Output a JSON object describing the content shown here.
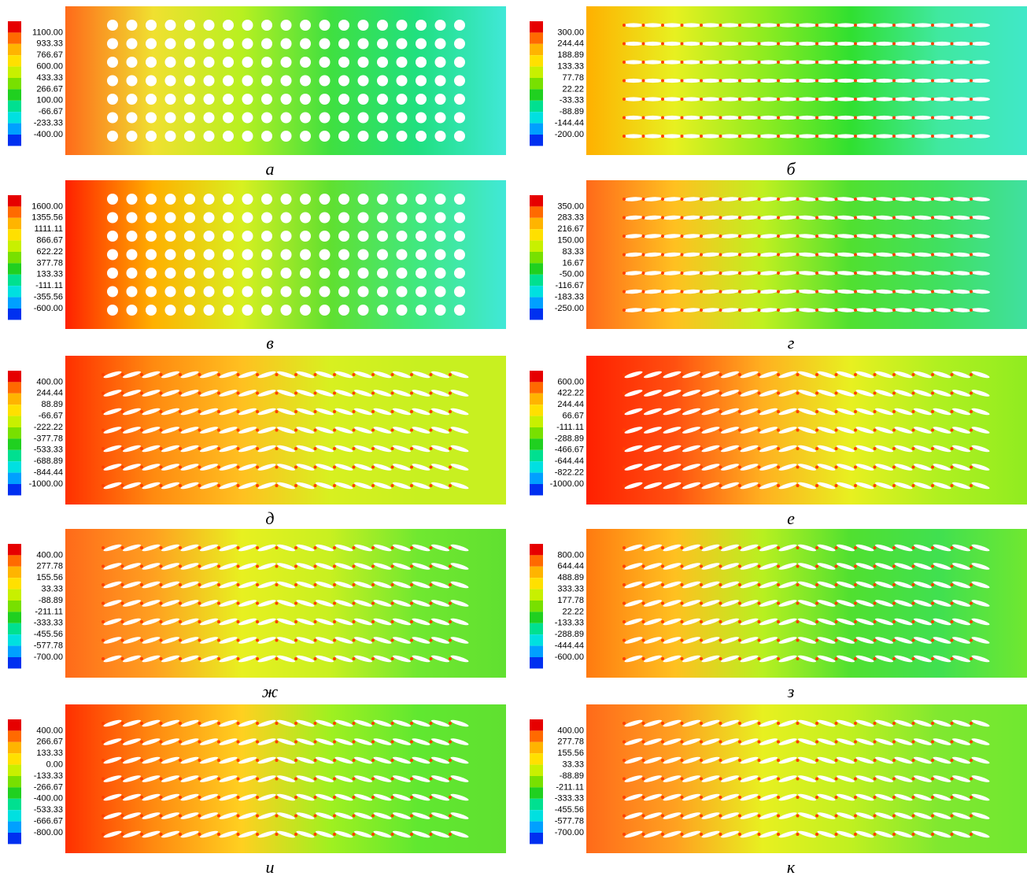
{
  "panels": [
    {
      "caption": "а",
      "legend": [
        "1100.00",
        "933.33",
        "766.67",
        "600.00",
        "433.33",
        "266.67",
        "100.00",
        "-66.67",
        "-233.33",
        "-400.00"
      ]
    },
    {
      "caption": "б",
      "legend": [
        "300.00",
        "244.44",
        "188.89",
        "133.33",
        "77.78",
        "22.22",
        "-33.33",
        "-88.89",
        "-144.44",
        "-200.00"
      ]
    },
    {
      "caption": "в",
      "legend": [
        "1600.00",
        "1355.56",
        "1111.11",
        "866.67",
        "622.22",
        "377.78",
        "133.33",
        "-111.11",
        "-355.56",
        "-600.00"
      ]
    },
    {
      "caption": "г",
      "legend": [
        "350.00",
        "283.33",
        "216.67",
        "150.00",
        "83.33",
        "16.67",
        "-50.00",
        "-116.67",
        "-183.33",
        "-250.00"
      ]
    },
    {
      "caption": "д",
      "legend": [
        "400.00",
        "244.44",
        "88.89",
        "-66.67",
        "-222.22",
        "-377.78",
        "-533.33",
        "-688.89",
        "-844.44",
        "-1000.00"
      ]
    },
    {
      "caption": "е",
      "legend": [
        "600.00",
        "422.22",
        "244.44",
        "66.67",
        "-111.11",
        "-288.89",
        "-466.67",
        "-644.44",
        "-822.22",
        "-1000.00"
      ]
    },
    {
      "caption": "ж",
      "legend": [
        "400.00",
        "277.78",
        "155.56",
        "33.33",
        "-88.89",
        "-211.11",
        "-333.33",
        "-455.56",
        "-577.78",
        "-700.00"
      ]
    },
    {
      "caption": "з",
      "legend": [
        "800.00",
        "644.44",
        "488.89",
        "333.33",
        "177.78",
        "22.22",
        "-133.33",
        "-288.89",
        "-444.44",
        "-600.00"
      ]
    },
    {
      "caption": "и",
      "legend": [
        "400.00",
        "266.67",
        "133.33",
        "0.00",
        "-133.33",
        "-266.67",
        "-400.00",
        "-533.33",
        "-666.67",
        "-800.00"
      ]
    },
    {
      "caption": "к",
      "legend": [
        "400.00",
        "277.78",
        "155.56",
        "33.33",
        "-88.89",
        "-211.11",
        "-333.33",
        "-455.56",
        "-577.78",
        "-700.00"
      ]
    }
  ]
}
